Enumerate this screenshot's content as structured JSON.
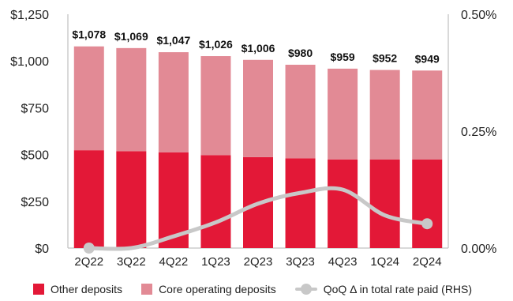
{
  "chart_data": {
    "type": "bar",
    "stacked": true,
    "categories": [
      "2Q22",
      "3Q22",
      "4Q22",
      "1Q23",
      "2Q23",
      "3Q23",
      "4Q23",
      "1Q24",
      "2Q24"
    ],
    "series": [
      {
        "name": "Other deposits",
        "color": "#e31837",
        "values": [
          523,
          518,
          512,
          497,
          486,
          480,
          474,
          473,
          473
        ]
      },
      {
        "name": "Core operating deposits",
        "color": "#e28a95",
        "values": [
          555,
          551,
          535,
          529,
          520,
          500,
          485,
          479,
          476
        ]
      }
    ],
    "totals": [
      1078,
      1069,
      1047,
      1026,
      1006,
      980,
      959,
      952,
      949
    ],
    "total_labels": [
      "$1,078",
      "$1,069",
      "$1,047",
      "$1,026",
      "$1,006",
      "$980",
      "$959",
      "$952",
      "$949"
    ],
    "line_series": {
      "name": "QoQ Δ in total rate paid (RHS)",
      "color": "#c8c8c8",
      "values": [
        0.0,
        0.0,
        0.025,
        0.055,
        0.095,
        0.118,
        0.125,
        0.07,
        0.052
      ]
    },
    "left_axis": {
      "ylim": [
        0,
        1250
      ],
      "ticks": [
        0,
        250,
        500,
        750,
        1000,
        1250
      ],
      "tick_labels": [
        "$0",
        "$250",
        "$500",
        "$750",
        "$1,000",
        "$1,250"
      ]
    },
    "right_axis": {
      "ylim": [
        0,
        0.5
      ],
      "ticks": [
        0,
        0.25,
        0.5
      ],
      "tick_labels": [
        "0.00%",
        "0.25%",
        "0.50%"
      ]
    },
    "legend_position": "bottom",
    "grid": false
  },
  "legend": {
    "other_deposits": "Other deposits",
    "core_operating": "Core operating deposits",
    "qoq_delta": "QoQ Δ in total rate paid (RHS)"
  },
  "colors": {
    "other": "#e31837",
    "core": "#e28a95",
    "line": "#c8c8c8",
    "axis": "#b3b3b3",
    "text": "#222222"
  }
}
